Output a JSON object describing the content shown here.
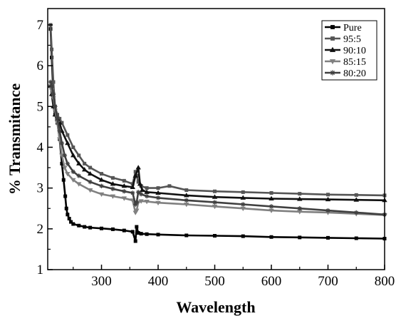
{
  "chart_data": {
    "type": "line",
    "title": "",
    "xlabel": "Wavelength",
    "ylabel": "% Transmitance",
    "xlim": [
      205,
      800
    ],
    "ylim": [
      1,
      7.4
    ],
    "x_ticks": [
      300,
      400,
      500,
      600,
      700,
      800
    ],
    "y_ticks": [
      1,
      2,
      3,
      4,
      5,
      6,
      7
    ],
    "grid": false,
    "legend_position": "top-right",
    "series": [
      {
        "name": "Pure",
        "color": "#000000",
        "marker": "square",
        "x": [
          210,
          212,
          215,
          218,
          222,
          226,
          230,
          233,
          236,
          238,
          240,
          243,
          246,
          250,
          260,
          270,
          280,
          300,
          320,
          340,
          355,
          360,
          362,
          365,
          370,
          380,
          400,
          450,
          500,
          550,
          600,
          650,
          700,
          750,
          800
        ],
        "y": [
          6.9,
          6.2,
          5.3,
          4.8,
          4.6,
          4.2,
          3.6,
          3.2,
          2.8,
          2.5,
          2.35,
          2.25,
          2.17,
          2.12,
          2.08,
          2.05,
          2.03,
          2.01,
          1.99,
          1.96,
          1.93,
          1.7,
          2.05,
          1.9,
          1.88,
          1.87,
          1.86,
          1.84,
          1.83,
          1.82,
          1.8,
          1.79,
          1.78,
          1.77,
          1.76
        ]
      },
      {
        "name": "95:5",
        "color": "#555555",
        "marker": "square",
        "x": [
          210,
          212,
          215,
          218,
          222,
          226,
          230,
          240,
          250,
          260,
          270,
          280,
          300,
          320,
          340,
          355,
          360,
          362,
          365,
          370,
          380,
          400,
          420,
          450,
          500,
          550,
          600,
          650,
          700,
          750,
          800
        ],
        "y": [
          7.0,
          6.4,
          5.6,
          5.0,
          4.8,
          4.7,
          4.6,
          4.3,
          4.0,
          3.8,
          3.6,
          3.5,
          3.35,
          3.25,
          3.18,
          3.1,
          3.4,
          3.3,
          3.15,
          3.05,
          3.0,
          3.0,
          3.05,
          2.95,
          2.92,
          2.9,
          2.88,
          2.86,
          2.84,
          2.83,
          2.82
        ]
      },
      {
        "name": "90:10",
        "color": "#111111",
        "marker": "triangle-up",
        "x": [
          210,
          212,
          215,
          218,
          222,
          226,
          230,
          240,
          250,
          260,
          270,
          280,
          300,
          320,
          340,
          355,
          360,
          365,
          368,
          372,
          380,
          400,
          450,
          500,
          550,
          600,
          650,
          700,
          750,
          800
        ],
        "y": [
          5.5,
          5.3,
          5.0,
          4.8,
          4.7,
          4.6,
          4.4,
          4.1,
          3.8,
          3.6,
          3.45,
          3.35,
          3.2,
          3.1,
          3.05,
          3.02,
          3.3,
          3.5,
          3.1,
          2.95,
          2.9,
          2.88,
          2.82,
          2.78,
          2.76,
          2.74,
          2.73,
          2.72,
          2.71,
          2.7
        ]
      },
      {
        "name": "85:15",
        "color": "#808080",
        "marker": "triangle-down",
        "x": [
          210,
          212,
          215,
          218,
          222,
          226,
          230,
          235,
          240,
          250,
          260,
          280,
          300,
          320,
          340,
          355,
          360,
          362,
          365,
          370,
          380,
          400,
          450,
          500,
          550,
          600,
          650,
          700,
          750,
          800
        ],
        "y": [
          5.5,
          5.4,
          5.2,
          4.9,
          4.6,
          4.2,
          3.8,
          3.5,
          3.35,
          3.2,
          3.1,
          2.95,
          2.85,
          2.8,
          2.75,
          2.7,
          2.4,
          2.45,
          2.65,
          2.68,
          2.67,
          2.64,
          2.6,
          2.55,
          2.5,
          2.45,
          2.42,
          2.4,
          2.37,
          2.34
        ]
      },
      {
        "name": "80:20",
        "color": "#404040",
        "marker": "star",
        "x": [
          210,
          212,
          215,
          218,
          222,
          226,
          230,
          235,
          240,
          250,
          260,
          280,
          300,
          320,
          340,
          355,
          360,
          362,
          365,
          370,
          380,
          400,
          450,
          500,
          550,
          600,
          650,
          700,
          750,
          800
        ],
        "y": [
          5.6,
          5.5,
          5.3,
          5.0,
          4.7,
          4.4,
          4.1,
          3.8,
          3.6,
          3.4,
          3.3,
          3.15,
          3.05,
          2.98,
          2.92,
          2.88,
          2.6,
          2.65,
          2.9,
          2.85,
          2.8,
          2.76,
          2.7,
          2.65,
          2.6,
          2.55,
          2.5,
          2.45,
          2.4,
          2.35
        ]
      }
    ]
  }
}
